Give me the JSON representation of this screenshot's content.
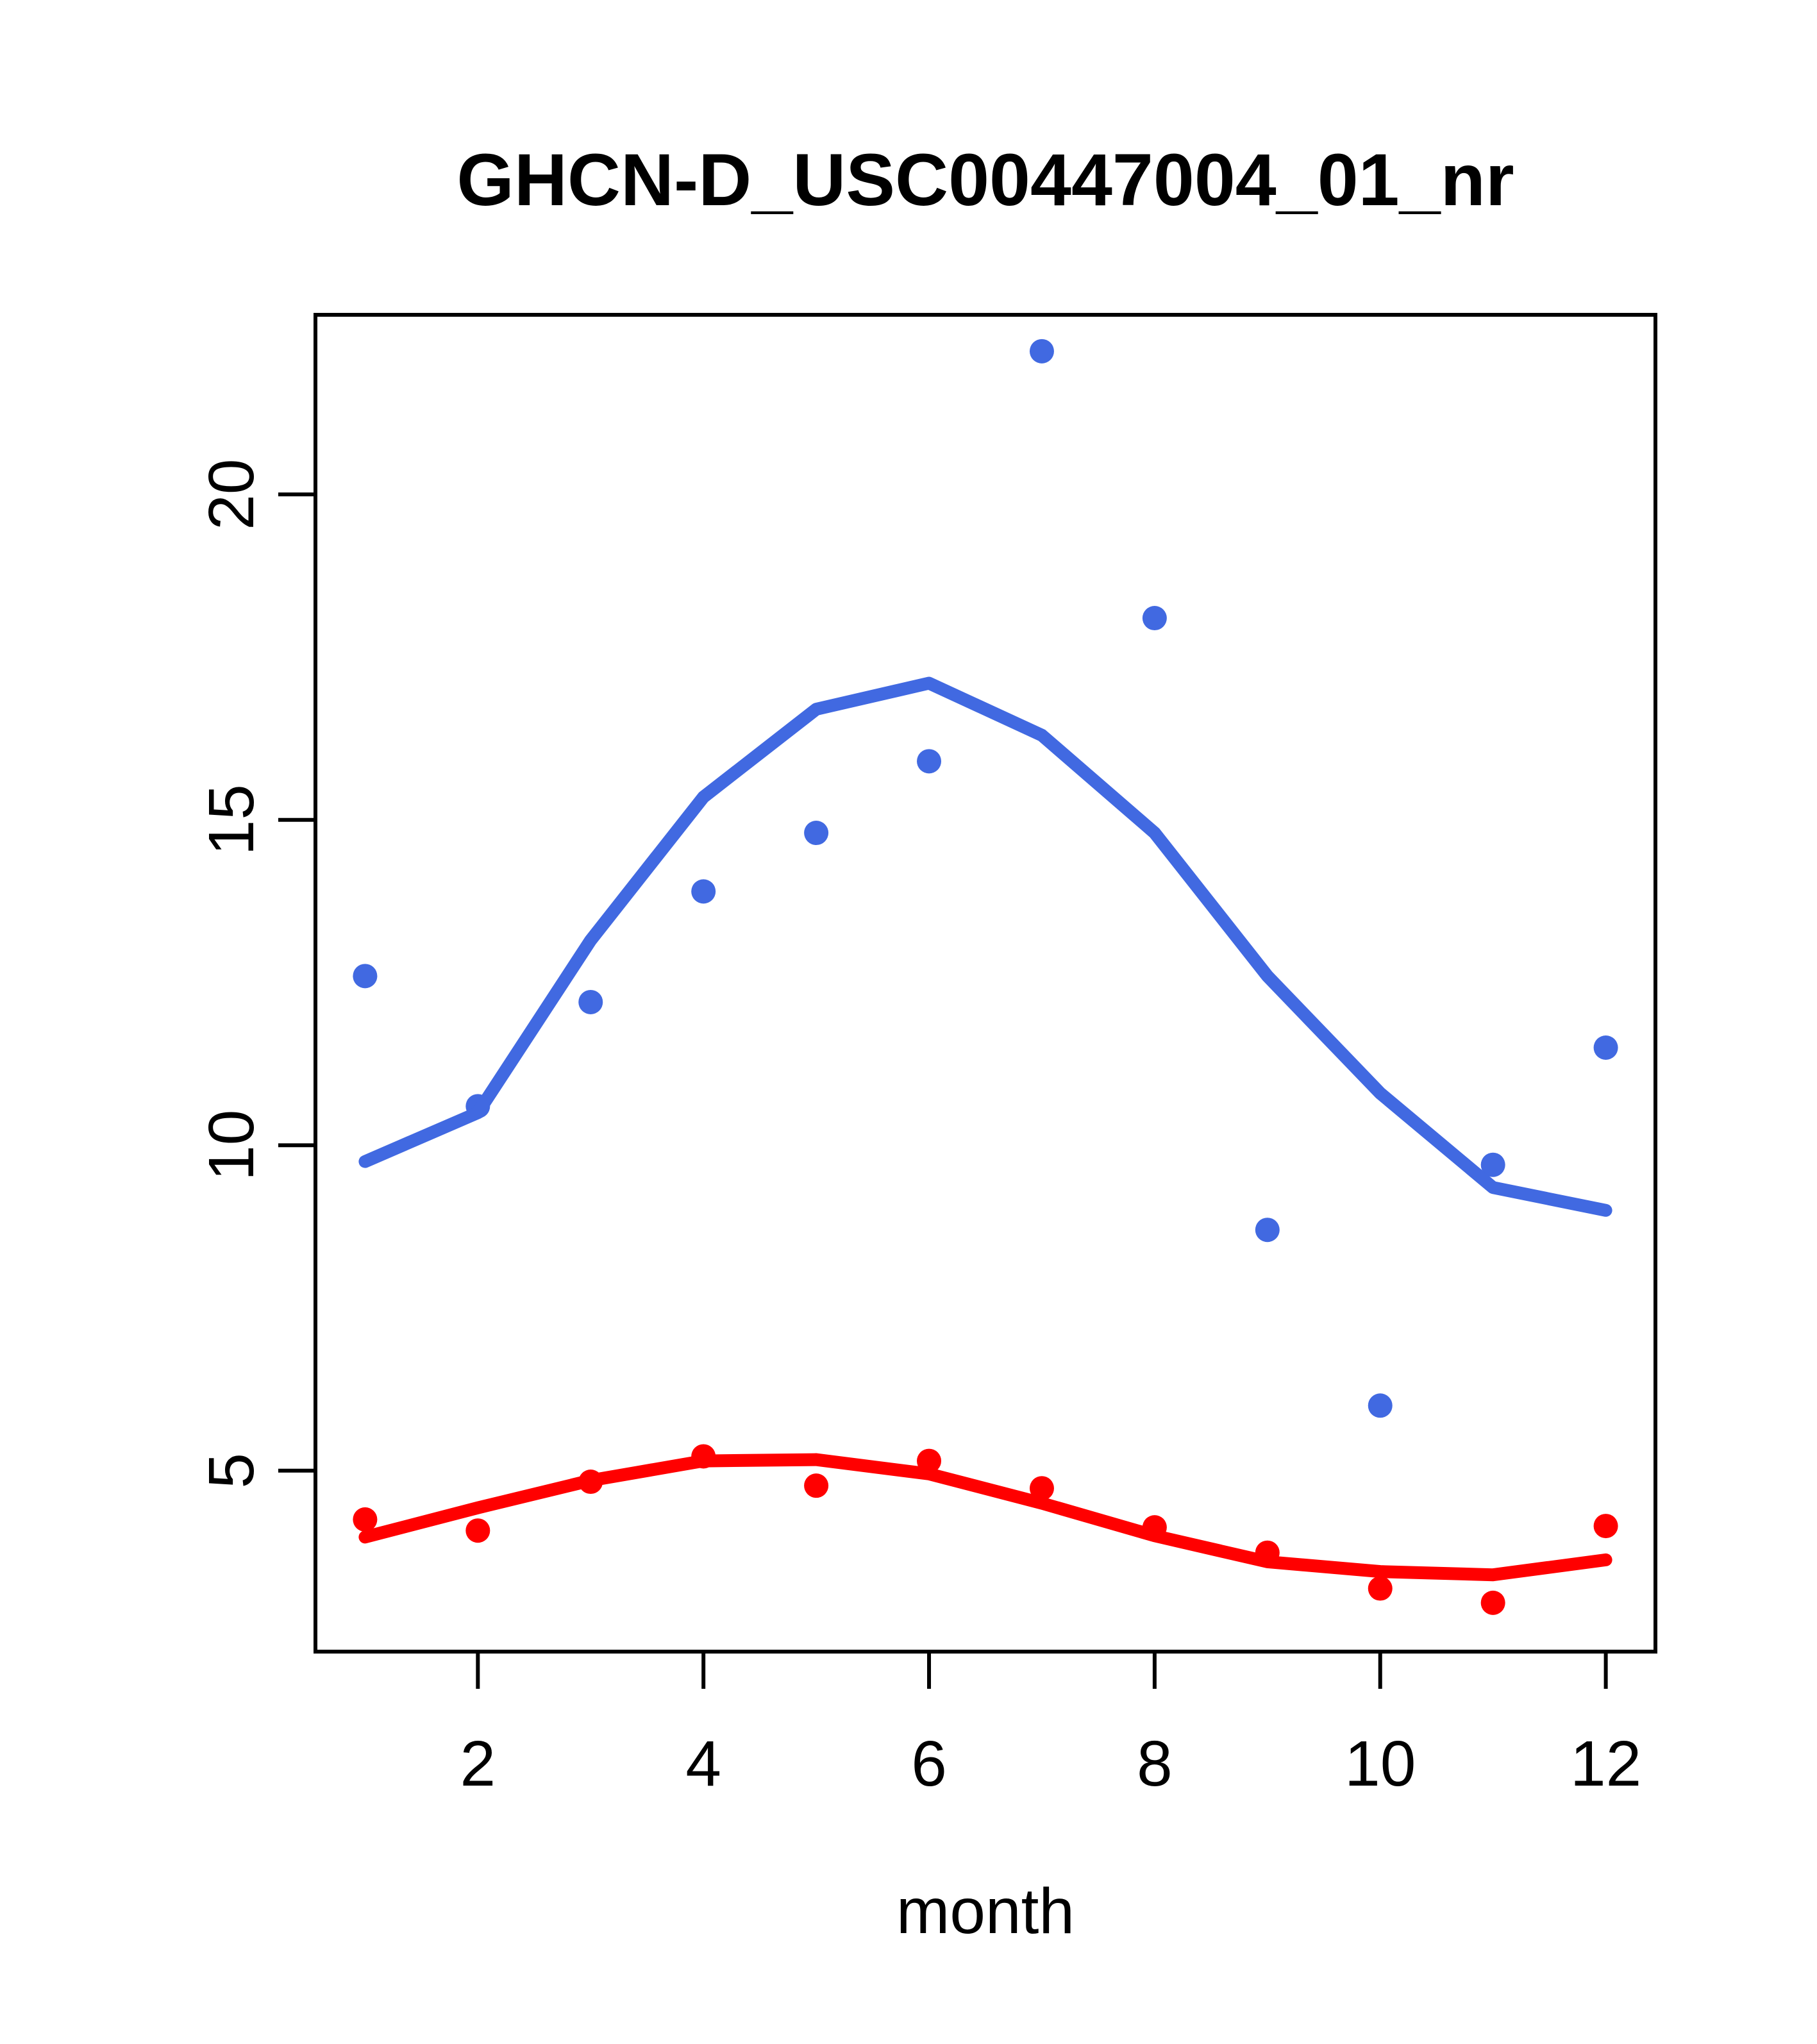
{
  "chart_data": {
    "type": "scatter",
    "title": "GHCN-D_USC00447004_01_nr",
    "xlabel": "month",
    "ylabel": "",
    "grid": false,
    "legend": null,
    "x": [
      1,
      2,
      3,
      4,
      5,
      6,
      7,
      8,
      9,
      10,
      11,
      12
    ],
    "xlim": [
      0.56,
      12.44
    ],
    "ylim": [
      2.22,
      22.76
    ],
    "x_ticks": [
      2,
      4,
      6,
      8,
      10,
      12
    ],
    "y_ticks": [
      5,
      10,
      15,
      20
    ],
    "x_tick_labels": [
      "2",
      "4",
      "6",
      "8",
      "10",
      "12"
    ],
    "y_tick_labels": [
      "5",
      "10",
      "15",
      "20"
    ],
    "colors": {
      "upper": "#4169e1",
      "lower": "#ff0000",
      "axis": "#000000"
    },
    "series": [
      {
        "name": "upper-points",
        "kind": "points",
        "color": "#4169e1",
        "values": [
          12.6,
          10.6,
          12.2,
          13.9,
          14.8,
          15.9,
          22.2,
          18.1,
          8.7,
          6.0,
          9.7,
          11.5
        ]
      },
      {
        "name": "upper-loess",
        "kind": "line",
        "color": "#4169e1",
        "values": [
          9.75,
          10.5,
          13.15,
          15.35,
          16.7,
          17.1,
          16.3,
          14.8,
          12.6,
          10.8,
          9.35,
          9.0
        ]
      },
      {
        "name": "lower-points",
        "kind": "points",
        "color": "#ff0000",
        "values": [
          4.25,
          4.08,
          4.83,
          5.22,
          4.77,
          5.15,
          4.73,
          4.13,
          3.74,
          3.19,
          2.97,
          4.15
        ]
      },
      {
        "name": "lower-loess",
        "kind": "line",
        "color": "#ff0000",
        "values": [
          3.98,
          4.43,
          4.85,
          5.15,
          5.17,
          4.95,
          4.5,
          4.0,
          3.6,
          3.45,
          3.4,
          3.63
        ]
      }
    ]
  }
}
